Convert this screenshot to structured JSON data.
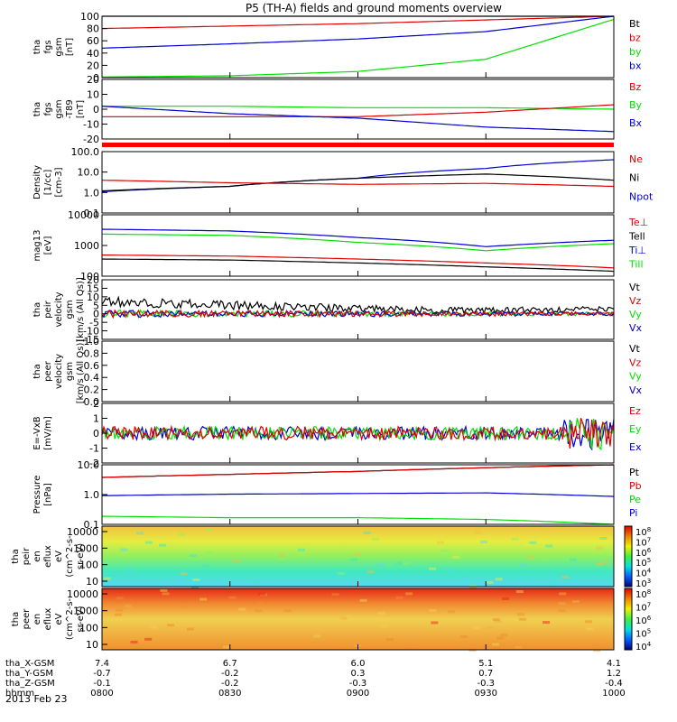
{
  "title": "P5 (TH-A) fields and ground moments overview",
  "date": "2013 Feb 23",
  "colors": {
    "black": "#000000",
    "red": "#e00000",
    "green": "#00e000",
    "blue": "#0000d0"
  },
  "chart_data": [
    {
      "type": "line",
      "ylabel": [
        "tha",
        "fgs",
        "gsm",
        "[nT]"
      ],
      "ylim": [
        0,
        100
      ],
      "ticks": [
        "100",
        "80",
        "60",
        "40",
        "20",
        "0"
      ],
      "legend": [
        {
          "label": "Bt",
          "color": "black"
        },
        {
          "label": "bz",
          "color": "red"
        },
        {
          "label": "by",
          "color": "green"
        },
        {
          "label": "bx",
          "color": "blue"
        }
      ],
      "series": [
        {
          "name": "Bt",
          "color": "black",
          "values": [
            100,
            100,
            100,
            100,
            100
          ]
        },
        {
          "name": "bz",
          "color": "red",
          "values": [
            80,
            84,
            88,
            94,
            100
          ]
        },
        {
          "name": "bx",
          "color": "blue",
          "values": [
            48,
            55,
            63,
            75,
            100
          ]
        },
        {
          "name": "by",
          "color": "green",
          "values": [
            1,
            3,
            10,
            30,
            95
          ]
        }
      ]
    },
    {
      "type": "line",
      "ylabel": [
        "tha",
        "fgs",
        "gsm",
        "-T89",
        "[nT]"
      ],
      "ylim": [
        -20,
        20
      ],
      "ticks": [
        "20",
        "10",
        "0",
        "-10",
        "-20"
      ],
      "legend": [
        {
          "label": "Bz",
          "color": "red"
        },
        {
          "label": "By",
          "color": "green"
        },
        {
          "label": "Bx",
          "color": "blue"
        }
      ],
      "series": [
        {
          "name": "By",
          "color": "green",
          "values": [
            2,
            2,
            1,
            1,
            0
          ]
        },
        {
          "name": "Bz",
          "color": "red",
          "values": [
            -5,
            -5,
            -5,
            -2,
            3
          ]
        },
        {
          "name": "Bx",
          "color": "blue",
          "values": [
            2,
            -3,
            -6,
            -12,
            -15
          ]
        }
      ]
    },
    {
      "type": "line",
      "ylabel": [
        "Density",
        "[1/cc]",
        "[cm-3]"
      ],
      "log": true,
      "ylim": [
        0.1,
        100
      ],
      "ticks": [
        "100.0",
        "10.0",
        "1.0",
        "0.1"
      ],
      "legend": [
        {
          "label": "Ne",
          "color": "red"
        },
        {
          "label": "Ni",
          "color": "black"
        },
        {
          "label": "Npot",
          "color": "blue"
        }
      ],
      "series": [
        {
          "name": "Npot",
          "color": "blue",
          "values": [
            1.1,
            2,
            5,
            15,
            40
          ]
        },
        {
          "name": "Ni",
          "color": "black",
          "values": [
            1.2,
            2,
            5,
            8,
            4
          ]
        },
        {
          "name": "Ne",
          "color": "red",
          "values": [
            4,
            3,
            2.5,
            2.8,
            2
          ]
        }
      ]
    },
    {
      "type": "line",
      "ylabel": [
        "mag13",
        "[eV]"
      ],
      "log": true,
      "ylim": [
        60,
        10000
      ],
      "ticks": [
        "10000",
        "1000",
        "100"
      ],
      "legend": [
        {
          "label": "Te⊥",
          "color": "red"
        },
        {
          "label": "Tell",
          "color": "black"
        },
        {
          "label": "Ti⊥",
          "color": "blue"
        },
        {
          "label": "Till",
          "color": "green"
        }
      ],
      "series": [
        {
          "name": "Ti⊥",
          "color": "blue",
          "values": [
            3000,
            2600,
            1500,
            700,
            1200
          ]
        },
        {
          "name": "Till",
          "color": "green",
          "values": [
            2000,
            1800,
            1000,
            500,
            900
          ]
        },
        {
          "name": "Te⊥",
          "color": "red",
          "values": [
            350,
            320,
            250,
            180,
            120
          ]
        },
        {
          "name": "Tell",
          "color": "black",
          "values": [
            250,
            230,
            180,
            130,
            90
          ]
        }
      ]
    },
    {
      "type": "line",
      "ylabel": [
        "tha",
        "peir",
        "velocity",
        "gsm",
        "[km/s (All Qs)]"
      ],
      "ylim": [
        -15,
        20
      ],
      "ticks": [
        "20",
        "15",
        "10",
        "5",
        "0",
        "-5",
        "-10",
        "-15"
      ],
      "legend": [
        {
          "label": "Vt",
          "color": "black"
        },
        {
          "label": "Vz",
          "color": "red"
        },
        {
          "label": "Vy",
          "color": "green"
        },
        {
          "label": "Vx",
          "color": "blue"
        }
      ],
      "series": [
        {
          "name": "Vt",
          "color": "black",
          "values": [
            7,
            5,
            3,
            2,
            3
          ]
        },
        {
          "name": "Vy",
          "color": "green",
          "values": [
            0,
            0,
            0,
            0,
            0
          ]
        },
        {
          "name": "Vx",
          "color": "blue",
          "values": [
            0,
            0,
            0,
            0,
            0
          ]
        },
        {
          "name": "Vz",
          "color": "red",
          "values": [
            0,
            0,
            0,
            0,
            0
          ]
        }
      ]
    },
    {
      "type": "line",
      "ylabel": [
        "tha",
        "peer",
        "velocity",
        "gsm",
        "[km/s (All Qs)]"
      ],
      "ylim": [
        0,
        1
      ],
      "ticks": [
        "1.0",
        "0.8",
        "0.6",
        "0.4",
        "0.2",
        "0.0"
      ],
      "legend": [
        {
          "label": "Vt",
          "color": "black"
        },
        {
          "label": "Vz",
          "color": "red"
        },
        {
          "label": "Vy",
          "color": "green"
        },
        {
          "label": "Vx",
          "color": "blue"
        }
      ],
      "series": []
    },
    {
      "type": "line",
      "ylabel": [
        "E=-VxB",
        "[mV/m]"
      ],
      "ylim": [
        -2,
        2
      ],
      "ticks": [
        "2",
        "1",
        "0",
        "-1",
        "-2"
      ],
      "legend": [
        {
          "label": "Ez",
          "color": "red"
        },
        {
          "label": "Ey",
          "color": "green"
        },
        {
          "label": "Ex",
          "color": "blue"
        }
      ],
      "series": [
        {
          "name": "Ex",
          "color": "blue",
          "values": [
            0,
            0,
            0,
            0,
            0
          ]
        },
        {
          "name": "Ey",
          "color": "green",
          "values": [
            0,
            0,
            0,
            0,
            0
          ]
        },
        {
          "name": "Ez",
          "color": "red",
          "values": [
            0,
            0,
            0,
            0,
            0
          ]
        }
      ]
    },
    {
      "type": "line",
      "ylabel": [
        "Pressure",
        "[nPa]"
      ],
      "log": true,
      "ylim": [
        0.03,
        15
      ],
      "ticks": [
        "10.0",
        "1.0",
        "0.1"
      ],
      "legend": [
        {
          "label": "Pt",
          "color": "black"
        },
        {
          "label": "Pb",
          "color": "red"
        },
        {
          "label": "Pe",
          "color": "green"
        },
        {
          "label": "Pi",
          "color": "blue"
        }
      ],
      "series": [
        {
          "name": "Pt",
          "color": "black",
          "values": [
            4,
            5.5,
            7.5,
            11,
            15
          ]
        },
        {
          "name": "Pb",
          "color": "red",
          "values": [
            4,
            5.5,
            7.5,
            11,
            15
          ]
        },
        {
          "name": "Pi",
          "color": "blue",
          "values": [
            0.6,
            0.7,
            0.75,
            0.8,
            0.55
          ]
        },
        {
          "name": "Pe",
          "color": "green",
          "values": [
            0.07,
            0.06,
            0.06,
            0.05,
            0.03
          ]
        }
      ]
    },
    {
      "type": "heatmap",
      "ylabel": [
        "tha",
        "peir",
        "en",
        "eflux",
        "eV",
        "(cm^2-s-",
        "sr-eV)"
      ],
      "yticks": [
        "10000",
        "1000",
        "100",
        "10"
      ],
      "cbar": [
        "10^8",
        "10^7",
        "10^6",
        "10^5",
        "10^4",
        "10^3"
      ],
      "stops": [
        "#5ad8f0",
        "#40e8c0",
        "#90f060",
        "#e8ec40",
        "#f0c040"
      ]
    },
    {
      "type": "heatmap",
      "ylabel": [
        "tha",
        "peer",
        "en",
        "eflux",
        "eV",
        "(cm^2-s-",
        "sr-eV)"
      ],
      "yticks": [
        "10000",
        "1000",
        "100",
        "10"
      ],
      "cbar": [
        "10^8",
        "10^7",
        "10^6",
        "10^5",
        "10^4"
      ],
      "stops": [
        "#f09030",
        "#f0b040",
        "#f0d050",
        "#f08a30",
        "#e82818"
      ]
    }
  ],
  "xaxis": {
    "rows": [
      {
        "label": "tha_X-GSM",
        "values": [
          "7.4",
          "6.7",
          "6.0",
          "5.1",
          "4.1"
        ]
      },
      {
        "label": "tha_Y-GSM",
        "values": [
          "-0.7",
          "-0.2",
          "0.3",
          "0.7",
          "1.2"
        ]
      },
      {
        "label": "tha_Z-GSM",
        "values": [
          "-0.1",
          "-0.2",
          "-0.3",
          "-0.3",
          "-0.4"
        ]
      },
      {
        "label": "hhmm",
        "values": [
          "0800",
          "0830",
          "0900",
          "0930",
          "1000"
        ]
      }
    ]
  }
}
